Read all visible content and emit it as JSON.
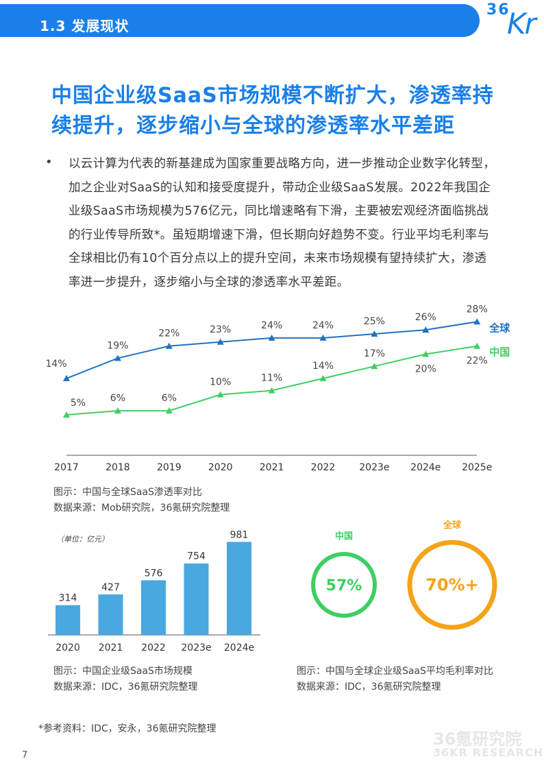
{
  "header": {
    "section_title": "1.3 发展现状",
    "logo_text": "36Kr"
  },
  "main": {
    "title": "中国企业级SaaS市场规模不断扩大，渗透率持续提升，逐步缩小与全球的渗透率水平差距",
    "bullet": "•",
    "body": "以云计算为代表的新基建成为国家重要战略方向，进一步推动企业数字化转型，加之企业对SaaS的认知和接受度提升，带动企业级SaaS发展。2022年我国企业级SaaS市场规模为576亿元，同比增速略有下滑，主要被宏观经济面临挑战的行业传导所致*。虽短期增速下滑，但长期向好趋势不变。行业平均毛利率与全球相比仍有10个百分点以上的提升空间，未来市场规模有望持续扩大，渗透率进一步提升，逐步缩小与全球的渗透率水平差距。"
  },
  "captions": {
    "line_caption": "图示：中国与全球SaaS渗透率对比",
    "line_source": "数据来源：Mob研究院，36氪研究院整理",
    "bar_caption": "图示：中国企业级SaaS市场规模",
    "bar_source": "数据来源：IDC，36氪研究院整理",
    "donut_caption": "图示：中国与全球企业级SaaS平均毛利率对比",
    "donut_source": "数据来源：IDC，36氪研究院整理"
  },
  "footnote": "*参考资料：IDC，安永，36氪研究院整理",
  "page_number": "7",
  "watermark": {
    "cn": "36氪研究院",
    "en": "36KR RESEARCH"
  },
  "colors": {
    "brand_blue": "#1a7fe8",
    "china_green": "#3ecf62",
    "global_blue": "#1f72c4",
    "bar_blue": "#4aa8e0",
    "orange": "#f5a31a"
  },
  "chart_data": [
    {
      "type": "line",
      "categories": [
        "2017",
        "2018",
        "2019",
        "2020",
        "2021",
        "2022",
        "2023e",
        "2024e",
        "2025e"
      ],
      "series": [
        {
          "name": "全球",
          "values": [
            14,
            19,
            22,
            23,
            24,
            24,
            25,
            26,
            28
          ],
          "labels": [
            "14%",
            "19%",
            "22%",
            "23%",
            "24%",
            "24%",
            "25%",
            "26%",
            "28%"
          ],
          "color": "#1f72c4"
        },
        {
          "name": "中国",
          "values": [
            5,
            6,
            6,
            10,
            11,
            14,
            17,
            20,
            22
          ],
          "labels": [
            "5%",
            "6%",
            "6%",
            "10%",
            "11%",
            "14%",
            "17%",
            "20%",
            "22%"
          ],
          "color": "#3ecf62"
        }
      ]
    },
    {
      "type": "bar",
      "unit_label": "（单位：亿元）",
      "categories": [
        "2020",
        "2021",
        "2022",
        "2023e",
        "2024e"
      ],
      "values": [
        314,
        427,
        576,
        754,
        981
      ],
      "color": "#4aa8e0"
    },
    {
      "type": "donut",
      "items": [
        {
          "name": "中国",
          "value_label": "57%",
          "color": "#3ecf62"
        },
        {
          "name": "全球",
          "value_label": "70%+",
          "color": "#f5a31a"
        }
      ]
    }
  ]
}
